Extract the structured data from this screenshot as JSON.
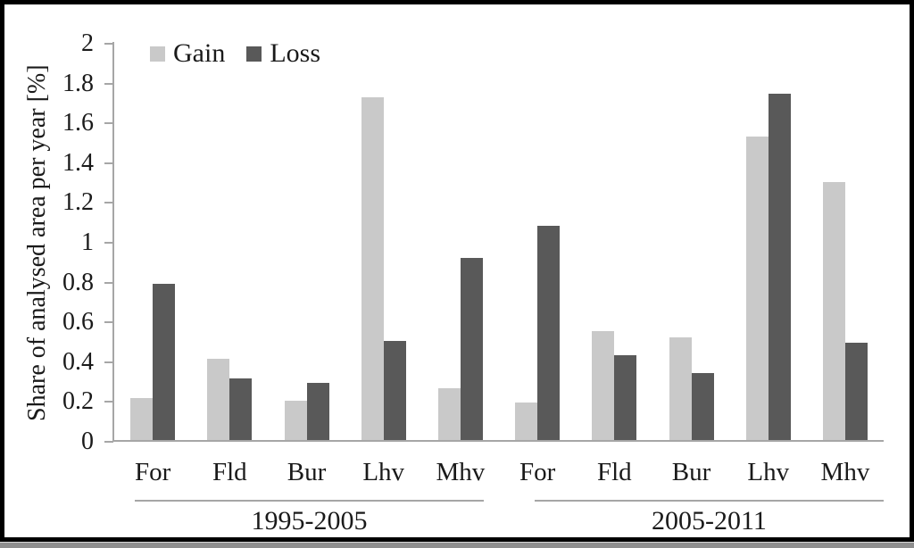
{
  "figure": {
    "frame_border_color": "#000000",
    "bottom_edge_strip_color": "#8f8f8f",
    "axis_color": "#a6a6a6",
    "text_color": "#1a1a1a"
  },
  "chart_data": {
    "type": "bar",
    "title": "",
    "xlabel": "",
    "ylabel": "Share of analysed area per year [%]",
    "ylim": [
      0,
      2
    ],
    "ytick_values": [
      0,
      0.2,
      0.4,
      0.6,
      0.8,
      1,
      1.2,
      1.4,
      1.6,
      1.8,
      2
    ],
    "ytick_labels": [
      "0",
      "0.2",
      "0.4",
      "0.6",
      "0.8",
      "1",
      "1.2",
      "1.4",
      "1.6",
      "1.8",
      "2"
    ],
    "grid": false,
    "legend_position": "top-left",
    "categories": [
      "For",
      "Fld",
      "Bur",
      "Lhv",
      "Mhv",
      "For",
      "Fld",
      "Bur",
      "Lhv",
      "Mhv"
    ],
    "group_labels": [
      "1995-2005",
      "2005-2011"
    ],
    "groups": [
      {
        "label": "1995-2005",
        "category_indices": [
          0,
          1,
          2,
          3,
          4
        ]
      },
      {
        "label": "2005-2011",
        "category_indices": [
          5,
          6,
          7,
          8,
          9
        ]
      }
    ],
    "series": [
      {
        "name": "Gain",
        "color": "#c9c9c9",
        "values": [
          0.21,
          0.41,
          0.2,
          1.73,
          0.26,
          0.19,
          0.55,
          0.52,
          1.53,
          1.3
        ]
      },
      {
        "name": "Loss",
        "color": "#595959",
        "values": [
          0.79,
          0.31,
          0.29,
          0.5,
          0.92,
          1.08,
          0.43,
          0.34,
          1.75,
          0.49
        ]
      }
    ]
  }
}
